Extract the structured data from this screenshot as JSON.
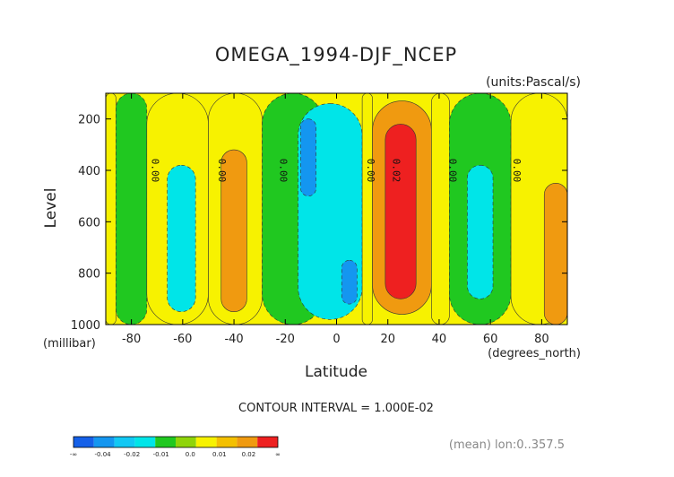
{
  "chart_data": {
    "type": "heatmap",
    "title": "OMEGA_1994-DJF_NCEP",
    "units_label": "(units:Pascal/s)",
    "xlabel": "Latitude",
    "x_unit_label": "(degrees_north)",
    "ylabel": "Level",
    "y_unit_label": "(millibar)",
    "xlim": [
      -90,
      90
    ],
    "ylim": [
      1000,
      100
    ],
    "y_axis_inverted": true,
    "x_ticks": [
      "-80",
      "-60",
      "-40",
      "-20",
      "0",
      "20",
      "40",
      "60",
      "80"
    ],
    "y_ticks": [
      "200",
      "400",
      "600",
      "800",
      "1000"
    ],
    "contour_interval_text": "CONTOUR INTERVAL = 1.000E-02",
    "footer_text": "(mean) lon:0..357.5",
    "contour_labels": [
      {
        "lat": -72,
        "level": 400,
        "text": "0.00"
      },
      {
        "lat": -46,
        "level": 400,
        "text": "0.00"
      },
      {
        "lat": -22,
        "level": 400,
        "text": "0.00"
      },
      {
        "lat": 12,
        "level": 400,
        "text": "0.00"
      },
      {
        "lat": 22,
        "level": 400,
        "text": "0.02"
      },
      {
        "lat": 44,
        "level": 400,
        "text": "0.00"
      },
      {
        "lat": 69,
        "level": 400,
        "text": "0.00"
      }
    ],
    "colorbar": {
      "bins": [
        {
          "color": "#1560e8"
        },
        {
          "color": "#1496f0"
        },
        {
          "color": "#12c8f4"
        },
        {
          "color": "#00e5e8"
        },
        {
          "color": "#20c820"
        },
        {
          "color": "#8fd40a"
        },
        {
          "color": "#f7f200"
        },
        {
          "color": "#f4c000"
        },
        {
          "color": "#f09a10"
        },
        {
          "color": "#ee2020"
        }
      ],
      "tick_labels": [
        "-∞",
        "-0.04",
        "-0.02",
        "-0.01",
        "0.0",
        "0.01",
        "0.02",
        "∞"
      ]
    },
    "field_bands": [
      {
        "lat_from": -90,
        "lat_to": -86,
        "level_from": 100,
        "level_to": 1000,
        "value": 0.005
      },
      {
        "lat_from": -86,
        "lat_to": -74,
        "level_from": 100,
        "level_to": 1000,
        "value": -0.005
      },
      {
        "lat_from": -74,
        "lat_to": -50,
        "level_from": 100,
        "level_to": 1000,
        "value": 0.005
      },
      {
        "lat_from": -66,
        "lat_to": -55,
        "level_from": 380,
        "level_to": 950,
        "value": -0.015
      },
      {
        "lat_from": -50,
        "lat_to": -29,
        "level_from": 100,
        "level_to": 1000,
        "value": 0.005
      },
      {
        "lat_from": -45,
        "lat_to": -35,
        "level_from": 320,
        "level_to": 950,
        "value": 0.015
      },
      {
        "lat_from": -29,
        "lat_to": -5,
        "level_from": 100,
        "level_to": 1000,
        "value": -0.005
      },
      {
        "lat_from": -15,
        "lat_to": 10,
        "level_from": 140,
        "level_to": 980,
        "value": -0.015
      },
      {
        "lat_from": -14,
        "lat_to": -8,
        "level_from": 200,
        "level_to": 500,
        "value": -0.03
      },
      {
        "lat_from": 2,
        "lat_to": 8,
        "level_from": 750,
        "level_to": 920,
        "value": -0.03
      },
      {
        "lat_from": 10,
        "lat_to": 14,
        "level_from": 100,
        "level_to": 1000,
        "value": 0.005
      },
      {
        "lat_from": 14,
        "lat_to": 37,
        "level_from": 130,
        "level_to": 960,
        "value": 0.015
      },
      {
        "lat_from": 19,
        "lat_to": 31,
        "level_from": 220,
        "level_to": 900,
        "value": 0.03
      },
      {
        "lat_from": 37,
        "lat_to": 44,
        "level_from": 100,
        "level_to": 1000,
        "value": 0.005
      },
      {
        "lat_from": 44,
        "lat_to": 68,
        "level_from": 100,
        "level_to": 1000,
        "value": -0.005
      },
      {
        "lat_from": 51,
        "lat_to": 61,
        "level_from": 380,
        "level_to": 900,
        "value": -0.015
      },
      {
        "lat_from": 68,
        "lat_to": 90,
        "level_from": 100,
        "level_to": 1000,
        "value": 0.005
      },
      {
        "lat_from": 81,
        "lat_to": 90,
        "level_from": 450,
        "level_to": 1000,
        "value": 0.015
      }
    ]
  }
}
